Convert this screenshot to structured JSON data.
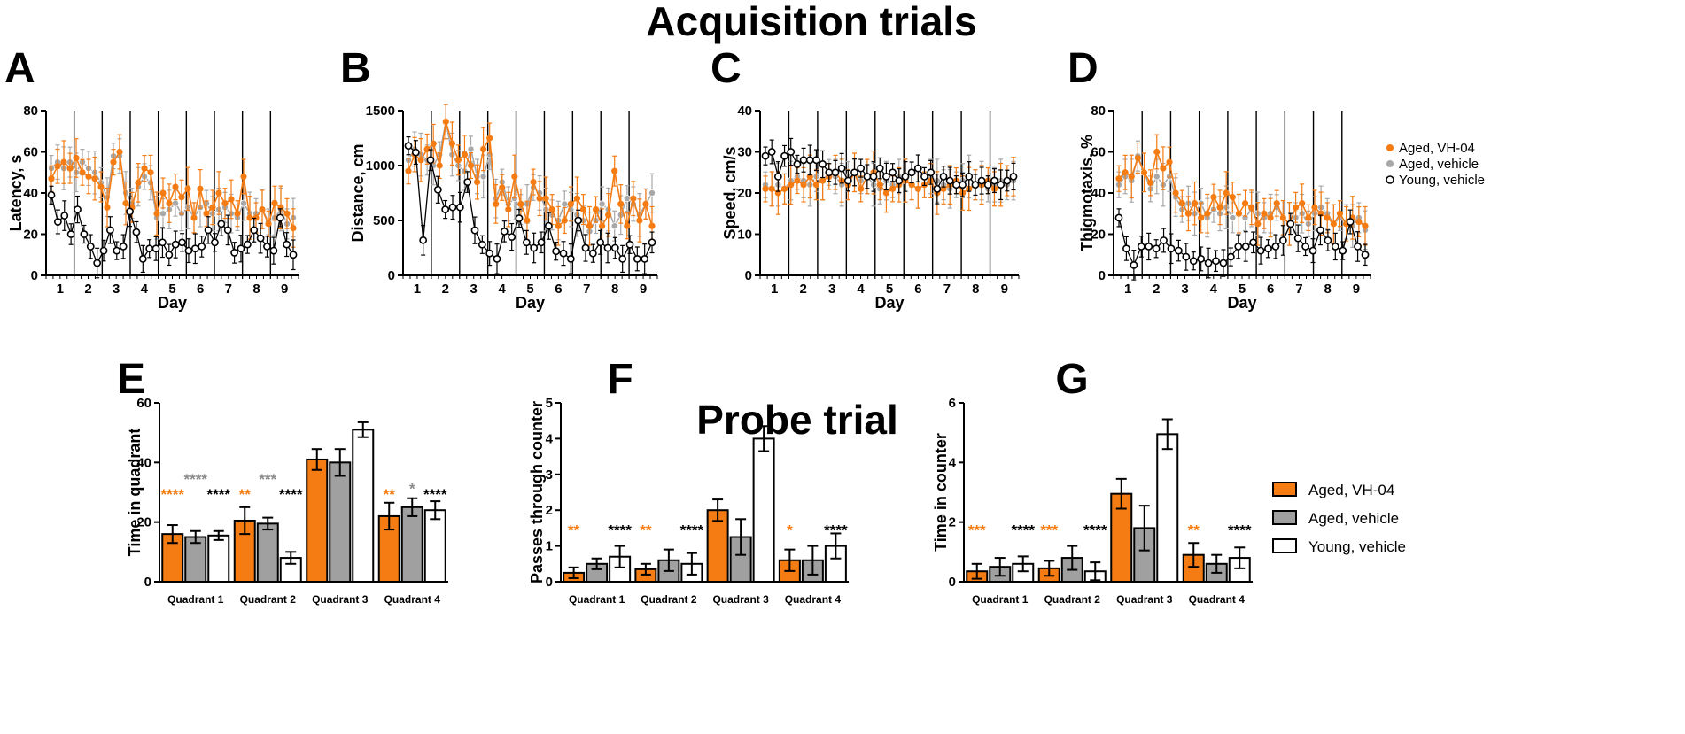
{
  "titles": {
    "acquisition": "Acquisition trials",
    "probe": "Probe trial"
  },
  "colors": {
    "vh04": "#F57C13",
    "vehicle": "#A8A8A8",
    "young": "#000000",
    "bar_vehicle": "#A0A0A0",
    "young_fill": "#FFFFFF"
  },
  "legend_lines": [
    "Aged, VH-04",
    "Aged, vehicle",
    "Young, vehicle"
  ],
  "legend_bars": [
    "Aged, VH-04",
    "Aged, vehicle",
    "Young, vehicle"
  ],
  "chart_data": [
    {
      "panel": "A",
      "type": "line",
      "xlabel": "Day",
      "ylabel": "Latency, s",
      "ylim": [
        0,
        80
      ],
      "yticks": [
        0,
        20,
        40,
        60,
        80
      ],
      "days": [
        "1",
        "2",
        "3",
        "4",
        "5",
        "6",
        "7",
        "8",
        "9"
      ],
      "series": [
        {
          "name": "Aged, VH-04",
          "values": [
            47,
            53,
            55,
            52,
            57,
            50,
            48,
            47,
            43,
            33,
            55,
            60,
            35,
            33,
            45,
            52,
            50,
            30,
            40,
            35,
            43,
            38,
            42,
            28,
            42,
            30,
            33,
            40,
            35,
            37,
            30,
            48,
            28,
            28,
            32,
            25,
            35,
            33,
            30,
            23
          ]
        },
        {
          "name": "Aged, vehicle",
          "values": [
            52,
            55,
            52,
            55,
            50,
            55,
            52,
            50,
            45,
            38,
            58,
            58,
            40,
            35,
            43,
            48,
            45,
            28,
            30,
            32,
            35,
            30,
            33,
            28,
            33,
            35,
            30,
            32,
            33,
            30,
            28,
            35,
            30,
            30,
            32,
            26,
            28,
            32,
            25,
            28
          ]
        },
        {
          "name": "Young, vehicle",
          "values": [
            39,
            26,
            29,
            20,
            32,
            20,
            14,
            6,
            12,
            22,
            12,
            14,
            31,
            21,
            8,
            13,
            13,
            16,
            10,
            15,
            16,
            12,
            13,
            14,
            22,
            16,
            25,
            22,
            11,
            13,
            15,
            22,
            18,
            14,
            12,
            28,
            15,
            10
          ]
        }
      ]
    },
    {
      "panel": "B",
      "type": "line",
      "xlabel": "Day",
      "ylabel": "Distance, cm",
      "ylim": [
        0,
        1500
      ],
      "yticks": [
        0,
        500,
        1000,
        1500
      ],
      "days": [
        "1",
        "2",
        "3",
        "4",
        "5",
        "6",
        "7",
        "8",
        "9"
      ],
      "series": [
        {
          "name": "Aged, VH-04",
          "values": [
            950,
            1100,
            1050,
            1150,
            1200,
            1000,
            1400,
            1200,
            1050,
            1100,
            1000,
            850,
            1150,
            1250,
            650,
            800,
            600,
            900,
            650,
            500,
            850,
            700,
            700,
            600,
            450,
            500,
            650,
            700,
            600,
            450,
            600,
            450,
            550,
            950,
            650,
            450,
            700,
            500,
            650,
            450
          ]
        },
        {
          "name": "Aged, vehicle",
          "values": [
            1050,
            1150,
            1100,
            1050,
            1000,
            1100,
            1400,
            1100,
            1000,
            950,
            1150,
            900,
            900,
            1100,
            700,
            850,
            650,
            700,
            600,
            650,
            800,
            750,
            600,
            550,
            500,
            650,
            600,
            550,
            500,
            400,
            500,
            650,
            600,
            450,
            550,
            700,
            650,
            550,
            650,
            750
          ]
        },
        {
          "name": "Young, vehicle",
          "values": [
            1180,
            1120,
            320,
            1050,
            780,
            600,
            620,
            620,
            850,
            410,
            280,
            200,
            150,
            400,
            350,
            520,
            300,
            250,
            300,
            450,
            220,
            200,
            150,
            500,
            250,
            200,
            300,
            250,
            250,
            150,
            280,
            150,
            150,
            300
          ]
        }
      ]
    },
    {
      "panel": "C",
      "type": "line",
      "xlabel": "Day",
      "ylabel": "Speed, cm/s",
      "ylim": [
        0,
        40
      ],
      "yticks": [
        0,
        10,
        20,
        30,
        40
      ],
      "days": [
        "1",
        "2",
        "3",
        "4",
        "5",
        "6",
        "7",
        "8",
        "9"
      ],
      "series": [
        {
          "name": "Aged, VH-04",
          "values": [
            21,
            21,
            20,
            21,
            22,
            23,
            22,
            24,
            22,
            23,
            24,
            25,
            23,
            22,
            25,
            21,
            24,
            25,
            22,
            20,
            21,
            22,
            23,
            22,
            21,
            22,
            23,
            20,
            21,
            22,
            23,
            20,
            21,
            22,
            22,
            23,
            21,
            22,
            23,
            24
          ]
        },
        {
          "name": "Aged, vehicle",
          "values": [
            22,
            21,
            22,
            21,
            23,
            24,
            23,
            22,
            24,
            23,
            25,
            24,
            22,
            24,
            25,
            23,
            24,
            22,
            21,
            23,
            22,
            24,
            23,
            22,
            21,
            22,
            24,
            23,
            22,
            21,
            22,
            23,
            24,
            22,
            23,
            21,
            22,
            23,
            22,
            23
          ]
        },
        {
          "name": "Young, vehicle",
          "values": [
            29,
            30,
            24,
            29,
            30,
            27,
            28,
            28,
            28,
            27,
            25,
            25,
            26,
            23,
            25,
            26,
            24,
            24,
            26,
            24,
            25,
            23,
            24,
            25,
            26,
            24,
            25,
            21,
            24,
            23,
            22,
            22,
            24,
            22,
            23,
            22,
            23,
            22,
            23,
            24
          ]
        }
      ]
    },
    {
      "panel": "D",
      "type": "line",
      "xlabel": "Day",
      "ylabel": "Thigmotaxis, %",
      "ylim": [
        0,
        80
      ],
      "yticks": [
        0,
        20,
        40,
        60,
        80
      ],
      "days": [
        "1",
        "2",
        "3",
        "4",
        "5",
        "6",
        "7",
        "8",
        "9"
      ],
      "series": [
        {
          "name": "Aged, VH-04",
          "values": [
            47,
            50,
            48,
            57,
            50,
            45,
            60,
            52,
            55,
            40,
            35,
            30,
            35,
            28,
            30,
            38,
            33,
            40,
            38,
            30,
            35,
            33,
            25,
            30,
            28,
            35,
            28,
            25,
            33,
            35,
            28,
            33,
            30,
            28,
            25,
            30,
            25,
            28,
            26,
            24
          ]
        },
        {
          "name": "Aged, vehicle",
          "values": [
            44,
            48,
            46,
            58,
            50,
            42,
            48,
            44,
            48,
            38,
            32,
            35,
            30,
            35,
            28,
            32,
            30,
            33,
            28,
            30,
            28,
            32,
            30,
            28,
            30,
            33,
            28,
            25,
            28,
            30,
            25,
            30,
            33,
            30,
            25,
            28,
            26,
            24,
            28,
            22
          ]
        },
        {
          "name": "Young, vehicle",
          "values": [
            28,
            13,
            5,
            14,
            14,
            13,
            17,
            13,
            12,
            9,
            7,
            8,
            6,
            7,
            6,
            9,
            14,
            14,
            16,
            12,
            13,
            14,
            17,
            25,
            18,
            14,
            12,
            22,
            17,
            14,
            12,
            26,
            14,
            10
          ]
        }
      ]
    },
    {
      "panel": "E",
      "type": "bar",
      "ylabel": "Time in quadrant",
      "ylim": [
        0,
        60
      ],
      "yticks": [
        0,
        20,
        40,
        60
      ],
      "categories": [
        "Quadrant 1",
        "Quadrant 2",
        "Quadrant 3",
        "Quadrant 4"
      ],
      "series": [
        {
          "name": "Aged, VH-04",
          "values": [
            16,
            20.5,
            41,
            22
          ],
          "errors": [
            3,
            4.5,
            3.5,
            4.5
          ]
        },
        {
          "name": "Aged, vehicle",
          "values": [
            15,
            19.5,
            40,
            25
          ],
          "errors": [
            2,
            2,
            4.5,
            3
          ]
        },
        {
          "name": "Young, vehicle",
          "values": [
            15.5,
            8,
            51,
            24
          ],
          "errors": [
            1.5,
            2,
            2.5,
            3
          ]
        }
      ],
      "annotations": [
        {
          "cat": 0,
          "bar": 0,
          "text": "****",
          "level": 30
        },
        {
          "cat": 0,
          "bar": 1,
          "text": "****",
          "level": 35
        },
        {
          "cat": 0,
          "bar": 2,
          "text": "****",
          "level": 30
        },
        {
          "cat": 1,
          "bar": 0,
          "text": "**",
          "level": 30
        },
        {
          "cat": 1,
          "bar": 1,
          "text": "***",
          "level": 35
        },
        {
          "cat": 1,
          "bar": 2,
          "text": "****",
          "level": 30
        },
        {
          "cat": 3,
          "bar": 0,
          "text": "**",
          "level": 30
        },
        {
          "cat": 3,
          "bar": 1,
          "text": "*",
          "level": 32
        },
        {
          "cat": 3,
          "bar": 2,
          "text": "****",
          "level": 30
        }
      ]
    },
    {
      "panel": "F",
      "type": "bar",
      "ylabel": "Passes through counter",
      "ylim": [
        0,
        5
      ],
      "yticks": [
        0,
        1,
        2,
        3,
        4,
        5
      ],
      "categories": [
        "Quadrant 1",
        "Quadrant 2",
        "Quadrant 3",
        "Quadrant 4"
      ],
      "series": [
        {
          "name": "Aged, VH-04",
          "values": [
            0.25,
            0.35,
            2.0,
            0.6
          ],
          "errors": [
            0.15,
            0.15,
            0.3,
            0.3
          ]
        },
        {
          "name": "Aged, vehicle",
          "values": [
            0.5,
            0.6,
            1.25,
            0.6
          ],
          "errors": [
            0.15,
            0.3,
            0.5,
            0.4
          ]
        },
        {
          "name": "Young, vehicle",
          "values": [
            0.7,
            0.5,
            4.0,
            1.0
          ],
          "errors": [
            0.3,
            0.3,
            0.35,
            0.35
          ]
        }
      ],
      "annotations": [
        {
          "cat": 0,
          "bar": 0,
          "text": "**",
          "level": 1.5
        },
        {
          "cat": 0,
          "bar": 2,
          "text": "****",
          "level": 1.5
        },
        {
          "cat": 1,
          "bar": 0,
          "text": "**",
          "level": 1.5
        },
        {
          "cat": 1,
          "bar": 2,
          "text": "****",
          "level": 1.5
        },
        {
          "cat": 3,
          "bar": 0,
          "text": "*",
          "level": 1.5
        },
        {
          "cat": 3,
          "bar": 2,
          "text": "****",
          "level": 1.5
        }
      ]
    },
    {
      "panel": "G",
      "type": "bar",
      "ylabel": "Time in counter",
      "ylim": [
        0,
        6
      ],
      "yticks": [
        0,
        2,
        4,
        6
      ],
      "categories": [
        "Quadrant 1",
        "Quadrant 2",
        "Quadrant 3",
        "Quadrant 4"
      ],
      "series": [
        {
          "name": "Aged, VH-04",
          "values": [
            0.35,
            0.45,
            2.95,
            0.9
          ],
          "errors": [
            0.25,
            0.25,
            0.5,
            0.4
          ]
        },
        {
          "name": "Aged, vehicle",
          "values": [
            0.5,
            0.8,
            1.8,
            0.6
          ],
          "errors": [
            0.3,
            0.4,
            0.75,
            0.3
          ]
        },
        {
          "name": "Young, vehicle",
          "values": [
            0.6,
            0.35,
            4.95,
            0.8
          ],
          "errors": [
            0.25,
            0.3,
            0.5,
            0.35
          ]
        }
      ],
      "annotations": [
        {
          "cat": 0,
          "bar": 0,
          "text": "***",
          "level": 1.8
        },
        {
          "cat": 0,
          "bar": 2,
          "text": "****",
          "level": 1.8
        },
        {
          "cat": 1,
          "bar": 0,
          "text": "***",
          "level": 1.8
        },
        {
          "cat": 1,
          "bar": 2,
          "text": "****",
          "level": 1.8
        },
        {
          "cat": 3,
          "bar": 0,
          "text": "**",
          "level": 1.8
        },
        {
          "cat": 3,
          "bar": 2,
          "text": "****",
          "level": 1.8
        }
      ]
    }
  ]
}
